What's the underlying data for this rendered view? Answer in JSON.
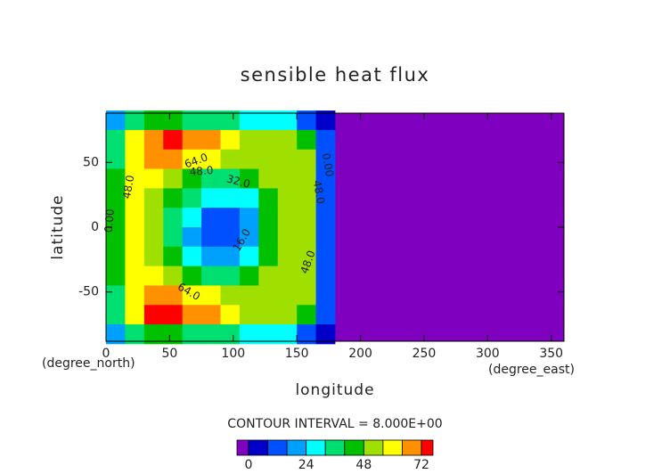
{
  "chart_data": {
    "type": "contour",
    "title": "sensible heat flux",
    "xlabel": "longitude",
    "ylabel": "latitude",
    "xunit": "(degree_east)",
    "yunit": "(degree_north)",
    "xlim": [
      0,
      360
    ],
    "ylim": [
      -88,
      88
    ],
    "xticks": [
      0,
      50,
      100,
      150,
      200,
      250,
      300,
      350
    ],
    "yticks": [
      -50,
      0,
      50
    ],
    "lon": [
      7.5,
      22.5,
      37.5,
      52.5,
      67.5,
      82.5,
      97.5,
      112.5,
      127.5,
      142.5,
      157.5,
      172.5
    ],
    "lat": [
      82.5,
      67.5,
      52.5,
      37.5,
      22.5,
      7.5,
      -7.5,
      -22.5,
      -37.5,
      -52.5,
      -67.5,
      -82.5
    ],
    "z": [
      [
        20,
        35,
        40,
        40,
        38,
        35,
        32,
        30,
        28,
        25,
        15,
        5
      ],
      [
        35,
        62,
        70,
        72,
        70,
        64,
        58,
        55,
        52,
        48,
        40,
        10
      ],
      [
        38,
        60,
        66,
        66,
        62,
        56,
        50,
        50,
        52,
        54,
        50,
        12
      ],
      [
        40,
        56,
        56,
        50,
        44,
        38,
        34,
        40,
        50,
        55,
        52,
        12
      ],
      [
        40,
        56,
        50,
        40,
        32,
        26,
        24,
        30,
        44,
        54,
        52,
        12
      ],
      [
        40,
        56,
        48,
        36,
        24,
        14,
        12,
        22,
        40,
        54,
        50,
        12
      ],
      [
        40,
        56,
        48,
        36,
        22,
        12,
        10,
        22,
        40,
        54,
        50,
        12
      ],
      [
        40,
        56,
        50,
        40,
        30,
        22,
        22,
        30,
        44,
        54,
        50,
        12
      ],
      [
        40,
        56,
        56,
        50,
        42,
        36,
        34,
        40,
        50,
        55,
        52,
        12
      ],
      [
        38,
        60,
        66,
        66,
        62,
        56,
        50,
        50,
        52,
        54,
        48,
        12
      ],
      [
        35,
        62,
        72,
        74,
        70,
        64,
        58,
        55,
        52,
        48,
        40,
        10
      ],
      [
        20,
        35,
        40,
        40,
        38,
        35,
        32,
        30,
        28,
        25,
        15,
        5
      ]
    ],
    "levels": [
      0,
      8,
      16,
      24,
      32,
      40,
      48,
      56,
      64,
      72
    ],
    "colors": [
      "#7f00bf",
      "#0000c8",
      "#0050ff",
      "#00a0ff",
      "#00ffff",
      "#00e070",
      "#00c000",
      "#a0e000",
      "#ffff00",
      "#ff9000",
      "#ff0000",
      "#ffb0c0"
    ],
    "colorbar_ticks": [
      0,
      24,
      48,
      72
    ],
    "contour_interval": "CONTOUR INTERVAL = 8.000E+00",
    "contour_labels": [
      "64.0",
      "48.0",
      "32.0",
      "16.0",
      "48.0",
      "0.00",
      "64.0",
      "48.0",
      "48.0",
      "0.00"
    ]
  }
}
